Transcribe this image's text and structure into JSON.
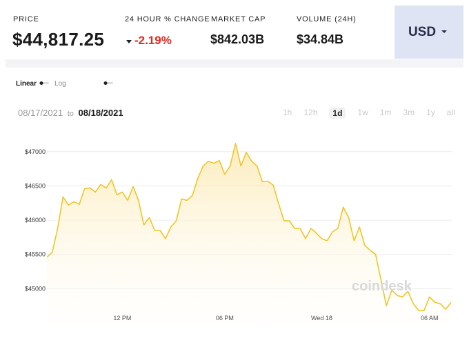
{
  "header": {
    "price_label": "PRICE",
    "price": "$44,817.25",
    "change_label": "24 HOUR % CHANGE",
    "change": "-2.19%",
    "market_cap_label": "MARKET CAP",
    "market_cap": "$842.03B",
    "volume_label": "VOLUME (24H)",
    "volume": "$34.84B",
    "currency": "USD"
  },
  "controls": {
    "scales": [
      "Linear",
      "Log"
    ],
    "date_from": "08/17/2021",
    "date_sep": "to",
    "date_to": "08/18/2021",
    "ranges": [
      "1h",
      "12h",
      "1d",
      "1w",
      "1m",
      "3m",
      "1y",
      "all"
    ],
    "active_range": "1d"
  },
  "watermark": "coindesk",
  "chart_data": {
    "type": "line",
    "categories": [
      null,
      null,
      null,
      null,
      null,
      null,
      null,
      null,
      null,
      null,
      null,
      null,
      null,
      null,
      "12 PM",
      null,
      null,
      null,
      null,
      null,
      null,
      null,
      null,
      null,
      null,
      null,
      null,
      null,
      null,
      null,
      null,
      null,
      null,
      "06 PM",
      null,
      null,
      null,
      null,
      null,
      null,
      null,
      null,
      null,
      null,
      null,
      null,
      null,
      null,
      null,
      null,
      null,
      "Wed 18",
      null,
      null,
      null,
      null,
      null,
      null,
      null,
      null,
      null,
      null,
      null,
      null,
      null,
      null,
      null,
      null,
      null,
      null,
      null,
      "06 AM",
      null,
      null,
      null,
      null
    ],
    "series": [
      {
        "name": "Price",
        "color": "#f2c524",
        "values": [
          45460,
          45530,
          45880,
          46340,
          46220,
          46270,
          46230,
          46460,
          46470,
          46410,
          46520,
          46470,
          46590,
          46370,
          46410,
          46290,
          46490,
          46290,
          45930,
          46040,
          45850,
          45850,
          45730,
          45900,
          45990,
          46310,
          46290,
          46360,
          46610,
          46790,
          46860,
          46830,
          46870,
          46670,
          46790,
          47120,
          46790,
          46990,
          46860,
          46790,
          46560,
          46570,
          46510,
          46240,
          45990,
          45990,
          45880,
          45880,
          45730,
          45880,
          45810,
          45730,
          45700,
          45830,
          45880,
          46190,
          46040,
          45700,
          45900,
          45630,
          45560,
          45500,
          45130,
          44750,
          44980,
          44900,
          44880,
          44960,
          44780,
          44680,
          44680,
          44880,
          44800,
          44780,
          44700,
          44800
        ]
      }
    ],
    "ylim": [
      44480,
      47300
    ],
    "yticks": [
      {
        "value": 45000,
        "label": "$45000"
      },
      {
        "value": 45500,
        "label": "$45500"
      },
      {
        "value": 46000,
        "label": "$46000"
      },
      {
        "value": 46500,
        "label": "$46500"
      },
      {
        "value": 47000,
        "label": "$47000"
      }
    ],
    "grid": true
  }
}
